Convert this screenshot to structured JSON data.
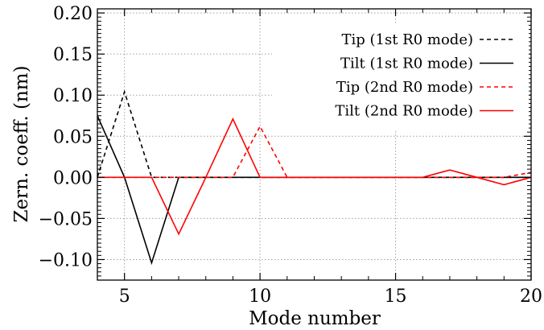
{
  "chart_data": {
    "type": "line",
    "xlabel": "Mode number",
    "ylabel": "Zern. coeff. (nm)",
    "xlim": [
      4,
      20
    ],
    "ylim": [
      -0.125,
      0.205
    ],
    "xticks": [
      5,
      10,
      15,
      20
    ],
    "xtick_labels": [
      "5",
      "10",
      "15",
      "20"
    ],
    "yticks": [
      -0.1,
      -0.05,
      0.0,
      0.05,
      0.1,
      0.15,
      0.2
    ],
    "ytick_labels": [
      "−0.10",
      "−0.05",
      "0.00",
      "0.05",
      "0.10",
      "0.15",
      "0.20"
    ],
    "grid": true,
    "grid_style": "dotted",
    "legend_position": "top-right",
    "series": [
      {
        "name": "Tip (1st R0 mode)",
        "color": "#000000",
        "dash": "dashed",
        "x": [
          4,
          5,
          6,
          7,
          8,
          9,
          10,
          11,
          12,
          13,
          14,
          15,
          16,
          17,
          18,
          19,
          20
        ],
        "y": [
          0.0,
          0.104,
          0.0,
          0.0,
          0.0,
          0.0,
          0.0,
          0.0,
          0.0,
          0.0,
          0.0,
          0.0,
          0.0,
          0.0,
          0.0,
          0.0,
          0.0
        ]
      },
      {
        "name": "Tilt (1st R0 mode)",
        "color": "#000000",
        "dash": "solid",
        "x": [
          4,
          5,
          6,
          7,
          8,
          9,
          10,
          11,
          12,
          13,
          14,
          15,
          16,
          17,
          18,
          19,
          20
        ],
        "y": [
          0.075,
          0.0,
          -0.104,
          0.0,
          0.0,
          0.0,
          0.0,
          0.0,
          0.0,
          0.0,
          0.0,
          0.0,
          0.0,
          0.0,
          0.0,
          0.0,
          0.0
        ]
      },
      {
        "name": "Tip (2nd R0 mode)",
        "color": "#ff0000",
        "dash": "dashed",
        "x": [
          4,
          5,
          6,
          7,
          8,
          9,
          10,
          11,
          12,
          13,
          14,
          15,
          16,
          17,
          18,
          19,
          20
        ],
        "y": [
          0.0,
          0.0,
          0.0,
          0.0,
          0.0,
          0.0,
          0.062,
          0.0,
          0.0,
          0.0,
          0.0,
          0.0,
          0.0,
          0.0,
          0.0,
          0.0,
          0.006
        ]
      },
      {
        "name": "Tilt (2nd R0 mode)",
        "color": "#ff0000",
        "dash": "solid",
        "x": [
          4,
          5,
          6,
          7,
          8,
          9,
          10,
          11,
          12,
          13,
          14,
          15,
          16,
          17,
          18,
          19,
          20
        ],
        "y": [
          0.0,
          0.0,
          0.0,
          -0.069,
          0.0,
          0.071,
          0.0,
          0.0,
          0.0,
          0.0,
          0.0,
          0.0,
          0.0,
          0.009,
          0.0,
          -0.009,
          0.0
        ]
      }
    ]
  }
}
